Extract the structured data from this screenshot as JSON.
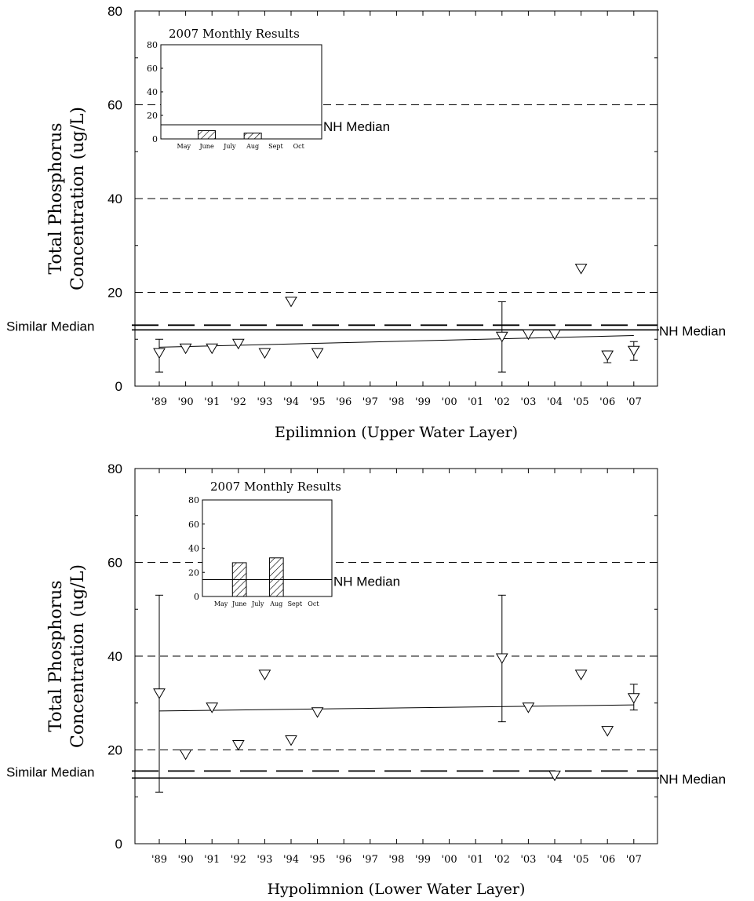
{
  "page_title_fragment": "",
  "labels": {
    "ylabel_line1": "Total Phosphorus",
    "ylabel_line2": "Concentration (ug/L)",
    "similar_median": "Similar Median",
    "nh_median": "NH Median",
    "inset_title": "2007 Monthly Results"
  },
  "chart_data": [
    {
      "type": "scatter",
      "title": "",
      "xlabel": "Epilimnion (Upper Water Layer)",
      "ylabel": "Total Phosphorus Concentration (ug/L)",
      "ylim": [
        0,
        80
      ],
      "yticks": [
        0,
        20,
        40,
        60,
        80
      ],
      "categories": [
        "'89",
        "'90",
        "'91",
        "'92",
        "'93",
        "'94",
        "'95",
        "'96",
        "'97",
        "'98",
        "'99",
        "'00",
        "'01",
        "'02",
        "'03",
        "'04",
        "'05",
        "'06",
        "'07"
      ],
      "series": [
        {
          "marker": "triangle-down",
          "values": [
            7,
            8,
            8,
            9,
            7,
            18,
            7,
            null,
            null,
            null,
            null,
            null,
            null,
            10.5,
            11,
            11,
            25,
            6.5,
            7.5
          ],
          "error_low": [
            3,
            null,
            null,
            null,
            null,
            null,
            null,
            null,
            null,
            null,
            null,
            null,
            null,
            3,
            null,
            null,
            null,
            5,
            5.5
          ],
          "error_high": [
            10,
            null,
            null,
            null,
            null,
            null,
            null,
            null,
            null,
            null,
            null,
            null,
            null,
            18,
            null,
            null,
            null,
            7.5,
            9.5
          ]
        }
      ],
      "trend_line": {
        "start": 8.3,
        "end": 10.8
      },
      "reference_lines": [
        {
          "label": "Similar Median",
          "value": 13,
          "style": "long-dash"
        },
        {
          "label": "NH Median",
          "value": 12,
          "style": "solid"
        }
      ],
      "grid": "dashed at 20, 40, 60",
      "inset": {
        "type": "bar",
        "title": "2007 Monthly Results",
        "categories": [
          "May",
          "June",
          "July",
          "Aug",
          "Sept",
          "Oct"
        ],
        "values": [
          null,
          7,
          null,
          5,
          null,
          null
        ],
        "ylim": [
          0,
          80
        ],
        "yticks": [
          0,
          20,
          40,
          60,
          80
        ],
        "reference_line": {
          "label": "NH Median",
          "value": 12
        }
      }
    },
    {
      "type": "scatter",
      "title": "",
      "xlabel": "Hypolimnion (Lower Water Layer)",
      "ylabel": "Total Phosphorus Concentration (ug/L)",
      "ylim": [
        0,
        80
      ],
      "yticks": [
        0,
        20,
        40,
        60,
        80
      ],
      "categories": [
        "'89",
        "'90",
        "'91",
        "'92",
        "'93",
        "'94",
        "'95",
        "'96",
        "'97",
        "'98",
        "'99",
        "'00",
        "'01",
        "'02",
        "'03",
        "'04",
        "'05",
        "'06",
        "'07"
      ],
      "series": [
        {
          "marker": "triangle-down",
          "values": [
            32,
            19,
            29,
            21,
            36,
            22,
            28,
            null,
            null,
            null,
            null,
            null,
            null,
            39.5,
            29,
            14.5,
            36,
            24,
            31
          ],
          "error_low": [
            11,
            null,
            null,
            null,
            null,
            null,
            null,
            null,
            null,
            null,
            null,
            null,
            null,
            26,
            null,
            null,
            null,
            null,
            28.5
          ],
          "error_high": [
            53,
            null,
            null,
            null,
            null,
            null,
            null,
            null,
            null,
            null,
            null,
            null,
            null,
            53,
            null,
            null,
            null,
            null,
            34
          ]
        }
      ],
      "trend_line": {
        "start": 28.3,
        "end": 29.6
      },
      "reference_lines": [
        {
          "label": "Similar Median",
          "value": 15.5,
          "style": "long-dash"
        },
        {
          "label": "NH Median",
          "value": 14,
          "style": "solid"
        }
      ],
      "grid": "dashed at 20, 40, 60",
      "inset": {
        "type": "bar",
        "title": "2007 Monthly Results",
        "categories": [
          "May",
          "June",
          "July",
          "Aug",
          "Sept",
          "Oct"
        ],
        "values": [
          null,
          28,
          null,
          32,
          null,
          null
        ],
        "ylim": [
          0,
          80
        ],
        "yticks": [
          0,
          20,
          40,
          60,
          80
        ],
        "reference_line": {
          "label": "NH Median",
          "value": 14
        }
      }
    }
  ]
}
